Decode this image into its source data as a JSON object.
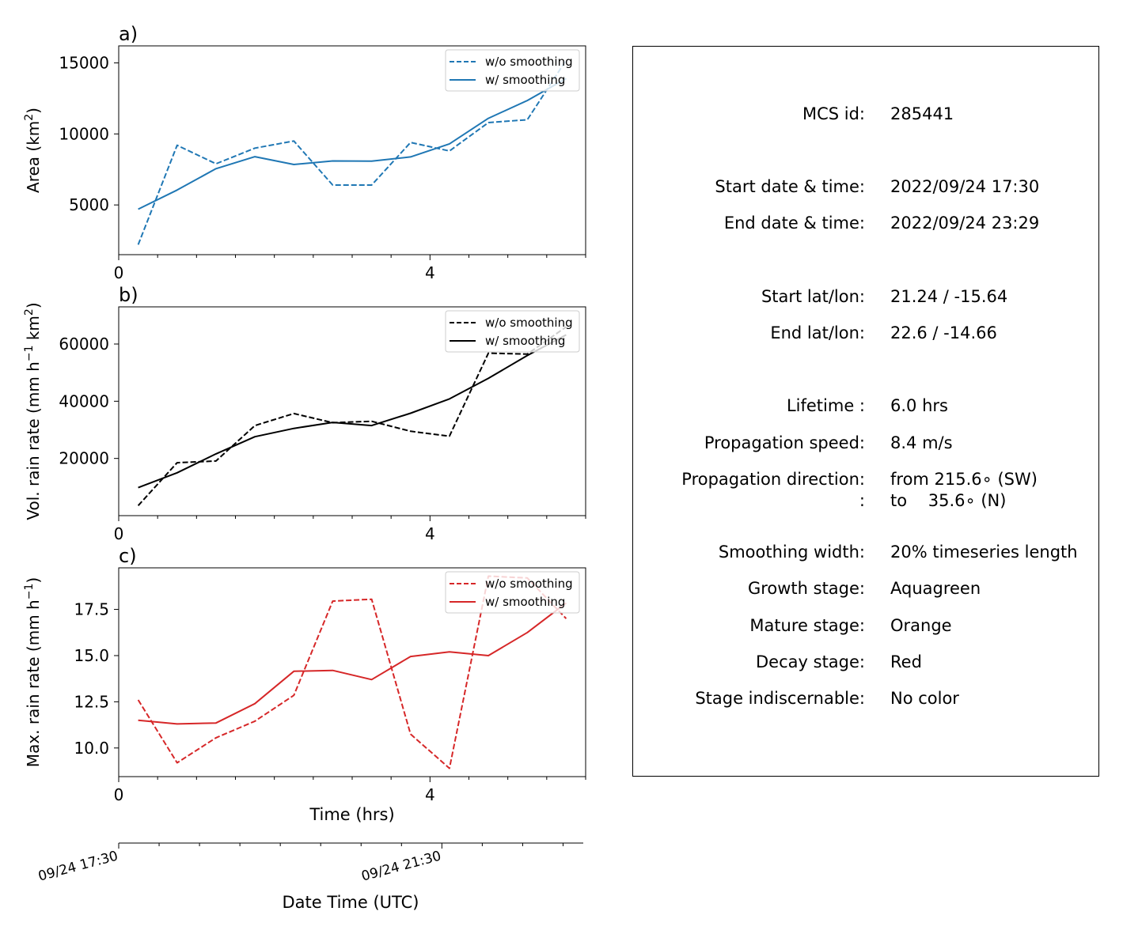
{
  "panels": [
    {
      "id": "a",
      "label": "a)",
      "ylabel_main": "Area  (km",
      "ylabel_sup": "2",
      "ylabel_tail": ")",
      "color": "#1f77b4",
      "yticks": [
        5000,
        10000,
        15000
      ],
      "ylim": [
        1500,
        16200
      ],
      "legend": [
        "w/o smoothing",
        "w/ smoothing"
      ]
    },
    {
      "id": "b",
      "label": "b)",
      "ylabel_main": "Vol. rain rate (mm h",
      "ylabel_sup": "−1",
      "ylabel_mid": " km",
      "ylabel_sup2": "2",
      "ylabel_tail": ")",
      "color": "#000000",
      "yticks": [
        20000,
        40000,
        60000
      ],
      "ylim": [
        0,
        73000
      ],
      "legend": [
        "w/o smoothing",
        "w/ smoothing"
      ]
    },
    {
      "id": "c",
      "label": "c)",
      "ylabel_main": "Max. rain rate  (mm h",
      "ylabel_sup": "−1",
      "ylabel_tail": ")",
      "color": "#d62728",
      "yticks": [
        "10.0",
        "12.5",
        "15.0",
        "17.5"
      ],
      "ylim": [
        8.45,
        19.75
      ],
      "legend": [
        "w/o smoothing",
        "w/ smoothing"
      ]
    }
  ],
  "x_axis": {
    "xlim": [
      0,
      6
    ],
    "major_ticks": [
      "0",
      "4"
    ],
    "xlabel": "Time (hrs)"
  },
  "datetime_axis": {
    "tick_labels": [
      "09/24 17:30",
      "09/24 21:30"
    ],
    "xlabel": "Date Time (UTC)"
  },
  "chart_data": [
    {
      "type": "line",
      "panel": "a",
      "x": [
        0.25,
        0.75,
        1.25,
        1.75,
        2.25,
        2.75,
        3.25,
        3.75,
        4.25,
        4.75,
        5.25,
        5.75
      ],
      "series": [
        {
          "name": "w/o smoothing",
          "style": "dashed",
          "values": [
            2200,
            9200,
            7900,
            9000,
            9500,
            6400,
            6400,
            9400,
            8800,
            10800,
            11000,
            15200
          ]
        },
        {
          "name": "w/ smoothing",
          "style": "solid",
          "values": [
            4700,
            6050,
            7550,
            8400,
            7850,
            8100,
            8080,
            8380,
            9300,
            11100,
            12350,
            13900
          ]
        }
      ]
    },
    {
      "type": "line",
      "panel": "b",
      "x": [
        0.25,
        0.75,
        1.25,
        1.75,
        2.25,
        2.75,
        3.25,
        3.75,
        4.25,
        4.75,
        5.25,
        5.75
      ],
      "series": [
        {
          "name": "w/o smoothing",
          "style": "dashed",
          "values": [
            3500,
            18500,
            19100,
            31500,
            35700,
            32500,
            33000,
            29500,
            27800,
            56800,
            56500,
            66000
          ]
        },
        {
          "name": "w/ smoothing",
          "style": "solid",
          "values": [
            9800,
            15000,
            21600,
            27600,
            30500,
            32600,
            31500,
            35800,
            40800,
            48000,
            56000,
            63200
          ]
        }
      ]
    },
    {
      "type": "line",
      "panel": "c",
      "x": [
        0.25,
        0.75,
        1.25,
        1.75,
        2.25,
        2.75,
        3.25,
        3.75,
        4.25,
        4.75,
        5.25,
        5.75
      ],
      "series": [
        {
          "name": "w/o smoothing",
          "style": "dashed",
          "values": [
            12.6,
            9.2,
            10.55,
            11.45,
            12.85,
            17.95,
            18.05,
            10.75,
            8.9,
            19.3,
            19.2,
            17.0
          ]
        },
        {
          "name": "w/ smoothing",
          "style": "solid",
          "values": [
            11.5,
            11.3,
            11.35,
            12.4,
            14.15,
            14.2,
            13.7,
            14.95,
            15.2,
            15.0,
            16.25,
            17.85
          ]
        }
      ]
    }
  ],
  "info": [
    {
      "label": "MCS id:",
      "value": "285441"
    },
    {
      "label": "Start date & time:",
      "value": "2022/09/24 17:30"
    },
    {
      "label": "End date & time:",
      "value": "2022/09/24 23:29"
    },
    {
      "label": "Start lat/lon:",
      "value": "21.24 / -15.64"
    },
    {
      "label": "End lat/lon:",
      "value": "22.6 / -14.66"
    },
    {
      "label": "Lifetime :",
      "value": "6.0 hrs"
    },
    {
      "label": "Propagation speed:",
      "value": "8.4 m/s"
    },
    {
      "label": "Propagation direction:",
      "value": "from 215.6∘ (SW)"
    },
    {
      "label": ":",
      "value": "to    35.6∘ (N)"
    },
    {
      "label": "Smoothing width:",
      "value": "20% timeseries length"
    },
    {
      "label": "Growth stage:",
      "value": "Aquagreen"
    },
    {
      "label": "Mature stage:",
      "value": "Orange"
    },
    {
      "label": "Decay stage:",
      "value": "Red"
    },
    {
      "label": "Stage indiscernable:",
      "value": "No color"
    }
  ]
}
